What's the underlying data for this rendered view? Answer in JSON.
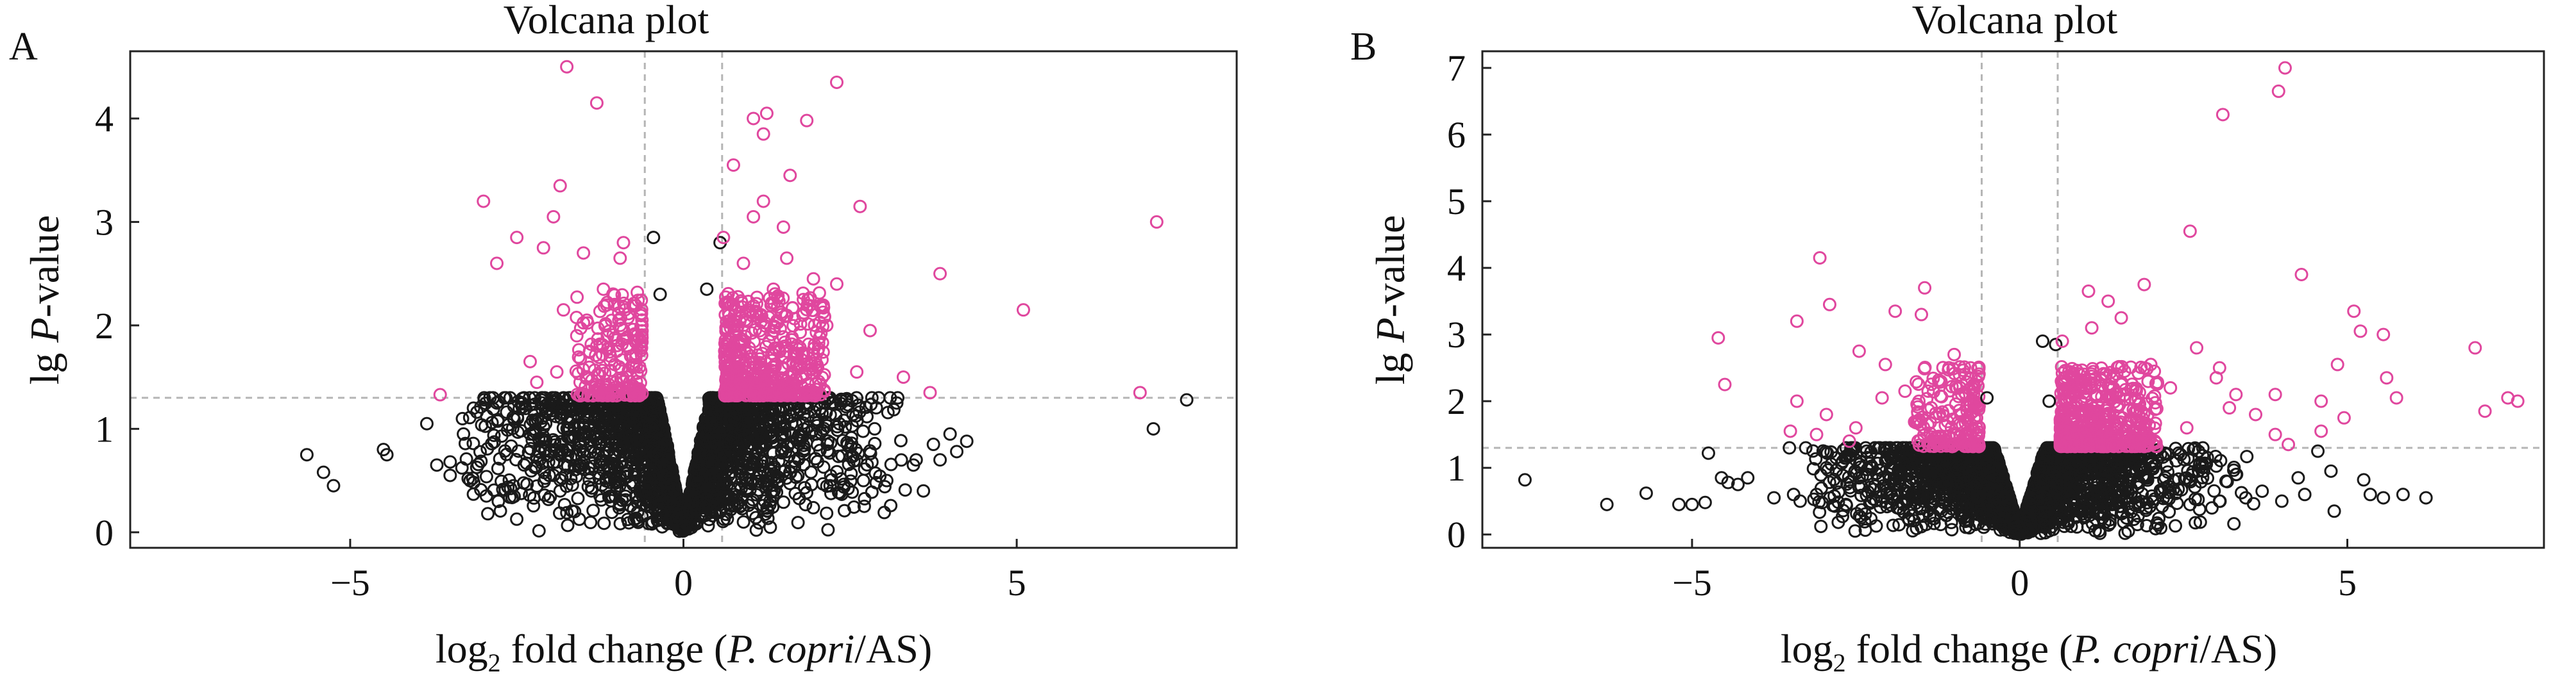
{
  "chart_data": [
    {
      "type": "scatter",
      "panel_label": "A",
      "title": "Volcana plot",
      "xlabel_parts": [
        "log",
        "2",
        " fold change (",
        "P. copri",
        "/AS)"
      ],
      "ylabel_parts": [
        "lg ",
        "P",
        "-value"
      ],
      "xlim": [
        -8.3,
        8.3
      ],
      "ylim": [
        -0.15,
        4.65
      ],
      "xticks": [
        -5,
        0,
        5
      ],
      "yticks": [
        0,
        1,
        2,
        3,
        4
      ],
      "xtick_labels": [
        "−5",
        "0",
        "5"
      ],
      "ytick_labels": [
        "0",
        "1",
        "2",
        "3",
        "4"
      ],
      "thresholds": {
        "log2fc": [
          -0.58,
          0.58
        ],
        "lgp": 1.3
      },
      "grid": false,
      "colors": {
        "significant": "#e0479e",
        "not_significant": "#1a1a1a",
        "threshold_line": "#b5b5b5"
      },
      "significant_points": [
        [
          -1.75,
          4.5
        ],
        [
          -1.3,
          4.15
        ],
        [
          -3.0,
          3.2
        ],
        [
          -1.85,
          3.35
        ],
        [
          -1.95,
          3.05
        ],
        [
          -2.5,
          2.85
        ],
        [
          -2.8,
          2.6
        ],
        [
          -2.1,
          2.75
        ],
        [
          -1.5,
          2.7
        ],
        [
          -0.9,
          2.8
        ],
        [
          -0.95,
          2.65
        ],
        [
          -1.2,
          2.35
        ],
        [
          -1.05,
          2.3
        ],
        [
          -1.8,
          2.15
        ],
        [
          -1.45,
          2.05
        ],
        [
          -2.3,
          1.65
        ],
        [
          -3.65,
          1.33
        ],
        [
          -1.6,
          1.9
        ],
        [
          -1.3,
          1.8
        ],
        [
          -1.0,
          1.75
        ],
        [
          -0.75,
          1.6
        ],
        [
          -1.9,
          1.55
        ],
        [
          -2.2,
          1.45
        ],
        [
          -0.85,
          1.5
        ],
        [
          -1.15,
          1.4
        ],
        [
          -0.7,
          1.9
        ],
        [
          -1.55,
          1.45
        ],
        [
          -0.95,
          2.0
        ],
        [
          0.6,
          2.85
        ],
        [
          0.75,
          3.55
        ],
        [
          1.05,
          4.0
        ],
        [
          1.25,
          4.05
        ],
        [
          1.2,
          3.85
        ],
        [
          1.85,
          3.98
        ],
        [
          2.3,
          4.35
        ],
        [
          1.6,
          3.45
        ],
        [
          1.2,
          3.2
        ],
        [
          1.05,
          3.05
        ],
        [
          1.5,
          2.95
        ],
        [
          2.65,
          3.15
        ],
        [
          1.95,
          2.45
        ],
        [
          2.3,
          2.4
        ],
        [
          3.85,
          2.5
        ],
        [
          5.1,
          2.15
        ],
        [
          7.1,
          3.0
        ],
        [
          6.85,
          1.35
        ],
        [
          3.7,
          1.35
        ],
        [
          2.8,
          1.95
        ],
        [
          2.6,
          1.55
        ],
        [
          3.3,
          1.5
        ],
        [
          1.55,
          2.65
        ],
        [
          0.9,
          2.6
        ],
        [
          1.35,
          2.35
        ],
        [
          1.8,
          2.25
        ],
        [
          2.15,
          2.0
        ],
        [
          0.75,
          2.2
        ]
      ],
      "not_significant_points": [
        [
          -5.65,
          0.75
        ],
        [
          -5.4,
          0.58
        ],
        [
          -5.25,
          0.45
        ],
        [
          -4.5,
          0.8
        ],
        [
          -4.45,
          0.75
        ],
        [
          -3.85,
          1.05
        ],
        [
          -3.3,
          0.95
        ],
        [
          -3.15,
          1.2
        ],
        [
          -2.8,
          1.25
        ],
        [
          -2.6,
          1.3
        ],
        [
          -3.7,
          0.65
        ],
        [
          -3.5,
          0.55
        ],
        [
          -3.2,
          0.5
        ],
        [
          -2.55,
          0.45
        ],
        [
          -1.95,
          0.55
        ],
        [
          -0.45,
          2.85
        ],
        [
          0.55,
          2.8
        ],
        [
          -0.35,
          2.3
        ],
        [
          0.35,
          2.35
        ],
        [
          2.7,
          0.5
        ],
        [
          3.05,
          0.5
        ],
        [
          3.2,
          1.25
        ],
        [
          3.45,
          0.65
        ],
        [
          3.6,
          0.4
        ],
        [
          3.75,
          0.85
        ],
        [
          3.85,
          0.7
        ],
        [
          4.0,
          0.95
        ],
        [
          4.1,
          0.78
        ],
        [
          4.25,
          0.88
        ],
        [
          -2.3,
          0.95
        ],
        [
          -1.85,
          0.4
        ],
        [
          2.2,
          0.45
        ],
        [
          -3.5,
          0.68
        ],
        [
          7.05,
          1.0
        ],
        [
          7.55,
          1.28
        ]
      ]
    },
    {
      "type": "scatter",
      "panel_label": "B",
      "title": "Volcana plot",
      "xlabel_parts": [
        "log",
        "2",
        " fold change (",
        "P. copri",
        "/AS)"
      ],
      "ylabel_parts": [
        "lg ",
        "P",
        "-value"
      ],
      "xlim": [
        -8.2,
        8.0
      ],
      "ylim": [
        -0.2,
        7.25
      ],
      "xticks": [
        -5,
        0,
        5
      ],
      "yticks": [
        0,
        1,
        2,
        3,
        4,
        5,
        6,
        7
      ],
      "xtick_labels": [
        "−5",
        "0",
        "5"
      ],
      "ytick_labels": [
        "0",
        "1",
        "2",
        "3",
        "4",
        "5",
        "6",
        "7"
      ],
      "thresholds": {
        "log2fc": [
          -0.58,
          0.58
        ],
        "lgp": 1.3
      },
      "grid": false,
      "colors": {
        "significant": "#e0479e",
        "not_significant": "#1a1a1a",
        "threshold_line": "#b5b5b5"
      },
      "significant_points": [
        [
          4.05,
          7.0
        ],
        [
          3.95,
          6.65
        ],
        [
          3.1,
          6.3
        ],
        [
          2.6,
          4.55
        ],
        [
          4.3,
          3.9
        ],
        [
          -3.05,
          4.15
        ],
        [
          -1.45,
          3.7
        ],
        [
          -1.5,
          3.3
        ],
        [
          -1.9,
          3.35
        ],
        [
          -2.9,
          3.45
        ],
        [
          -3.4,
          3.2
        ],
        [
          -4.6,
          2.95
        ],
        [
          -2.45,
          2.75
        ],
        [
          -2.05,
          2.55
        ],
        [
          -1.0,
          2.7
        ],
        [
          -0.75,
          2.5
        ],
        [
          -4.5,
          2.25
        ],
        [
          -3.4,
          2.0
        ],
        [
          -2.95,
          1.8
        ],
        [
          -3.5,
          1.55
        ],
        [
          -2.1,
          2.05
        ],
        [
          -1.75,
          2.15
        ],
        [
          -1.35,
          1.9
        ],
        [
          -2.5,
          1.6
        ],
        [
          -1.2,
          1.45
        ],
        [
          -2.6,
          1.4
        ],
        [
          -3.1,
          1.5
        ],
        [
          -0.9,
          1.8
        ],
        [
          1.05,
          3.65
        ],
        [
          1.35,
          3.5
        ],
        [
          1.9,
          3.75
        ],
        [
          1.55,
          3.25
        ],
        [
          1.1,
          3.1
        ],
        [
          0.65,
          2.9
        ],
        [
          2.0,
          2.55
        ],
        [
          2.7,
          2.8
        ],
        [
          3.05,
          2.5
        ],
        [
          3.3,
          2.1
        ],
        [
          3.0,
          2.35
        ],
        [
          3.2,
          1.9
        ],
        [
          3.6,
          1.8
        ],
        [
          3.9,
          2.1
        ],
        [
          5.1,
          3.35
        ],
        [
          5.2,
          3.05
        ],
        [
          5.55,
          3.0
        ],
        [
          4.85,
          2.55
        ],
        [
          5.6,
          2.35
        ],
        [
          5.75,
          2.05
        ],
        [
          4.6,
          2.0
        ],
        [
          4.95,
          1.75
        ],
        [
          4.6,
          1.55
        ],
        [
          6.95,
          2.8
        ],
        [
          7.1,
          1.85
        ],
        [
          7.45,
          2.05
        ],
        [
          7.6,
          2.0
        ],
        [
          2.3,
          2.2
        ],
        [
          1.6,
          2.45
        ],
        [
          0.9,
          2.15
        ],
        [
          1.3,
          1.8
        ],
        [
          2.55,
          1.6
        ],
        [
          3.9,
          1.5
        ],
        [
          4.1,
          1.35
        ]
      ],
      "not_significant_points": [
        [
          -7.55,
          0.82
        ],
        [
          -6.3,
          0.45
        ],
        [
          -5.7,
          0.62
        ],
        [
          -5.2,
          0.45
        ],
        [
          -5.0,
          0.45
        ],
        [
          -4.8,
          0.48
        ],
        [
          -4.75,
          1.22
        ],
        [
          -4.55,
          0.85
        ],
        [
          -4.45,
          0.78
        ],
        [
          -4.3,
          0.75
        ],
        [
          -4.15,
          0.85
        ],
        [
          -3.75,
          0.55
        ],
        [
          -3.45,
          0.6
        ],
        [
          -3.35,
          0.5
        ],
        [
          -3.1,
          0.6
        ],
        [
          -2.95,
          1.0
        ],
        [
          -2.65,
          0.45
        ],
        [
          -2.45,
          0.85
        ],
        [
          -2.1,
          0.5
        ],
        [
          -0.5,
          2.05
        ],
        [
          0.45,
          2.0
        ],
        [
          0.35,
          2.9
        ],
        [
          0.55,
          2.85
        ],
        [
          3.05,
          0.5
        ],
        [
          3.45,
          0.55
        ],
        [
          3.7,
          0.65
        ],
        [
          4.0,
          0.5
        ],
        [
          4.25,
          0.85
        ],
        [
          4.35,
          0.6
        ],
        [
          4.55,
          1.25
        ],
        [
          4.8,
          0.35
        ],
        [
          5.25,
          0.82
        ],
        [
          5.35,
          0.6
        ],
        [
          5.55,
          0.55
        ],
        [
          5.85,
          0.6
        ],
        [
          6.2,
          0.55
        ],
        [
          -2.8,
          1.15
        ],
        [
          2.6,
          0.45
        ],
        [
          3.3,
          0.9
        ],
        [
          4.75,
          0.95
        ]
      ]
    }
  ]
}
